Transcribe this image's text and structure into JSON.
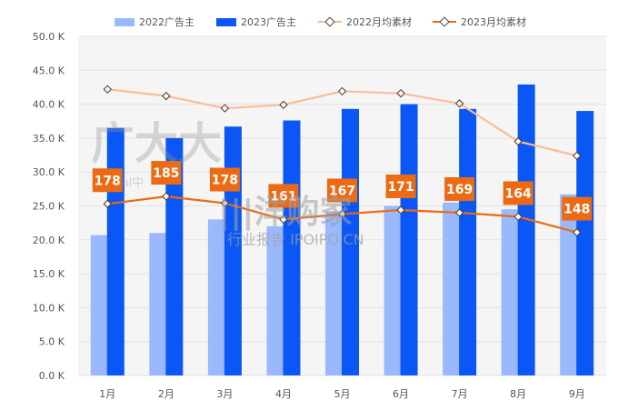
{
  "chart_data": {
    "type": "bar",
    "categories": [
      "1月",
      "2月",
      "3月",
      "4月",
      "5月",
      "6月",
      "7月",
      "8月",
      "9月"
    ],
    "series": [
      {
        "name": "2022广告主",
        "kind": "bar",
        "color": "#9ab8fc",
        "values": [
          20.7,
          21.0,
          23.0,
          22.0,
          24.2,
          25.0,
          25.5,
          24.5,
          26.7
        ]
      },
      {
        "name": "2023广告主",
        "kind": "bar",
        "color": "#0a57f5",
        "values": [
          36.5,
          35.0,
          36.7,
          37.6,
          39.3,
          40.0,
          39.3,
          42.9,
          39.0
        ]
      },
      {
        "name": "2022月均素材",
        "kind": "line",
        "color": "#f9bd96",
        "values": [
          42.2,
          41.2,
          39.4,
          39.9,
          41.9,
          41.6,
          40.1,
          34.5,
          32.4
        ]
      },
      {
        "name": "2023月均素材",
        "kind": "line",
        "color": "#ec6a12",
        "values": [
          25.3,
          26.4,
          25.4,
          23.0,
          23.8,
          24.4,
          24.0,
          23.4,
          21.1
        ],
        "labels": [
          "178",
          "185",
          "178",
          "161",
          "167",
          "171",
          "169",
          "164",
          "148"
        ]
      }
    ],
    "yticks": [
      "0.0 K",
      "5.0 K",
      "10.0 K",
      "15.0 K",
      "20.0 K",
      "25.0 K",
      "30.0 K",
      "35.0 K",
      "40.0 K",
      "45.0 K",
      "50.0 K"
    ],
    "ylim": [
      0,
      50
    ],
    "grid": true,
    "legend_position": "top-center",
    "title": "",
    "xlabel": "",
    "ylabel": ""
  },
  "watermarks": {
    "brand_left": "广大大",
    "brand_left_sub": "ial中",
    "brand_center": "|||洋购家",
    "brand_center_sub": "行业报告 IPOIPO.CN"
  }
}
